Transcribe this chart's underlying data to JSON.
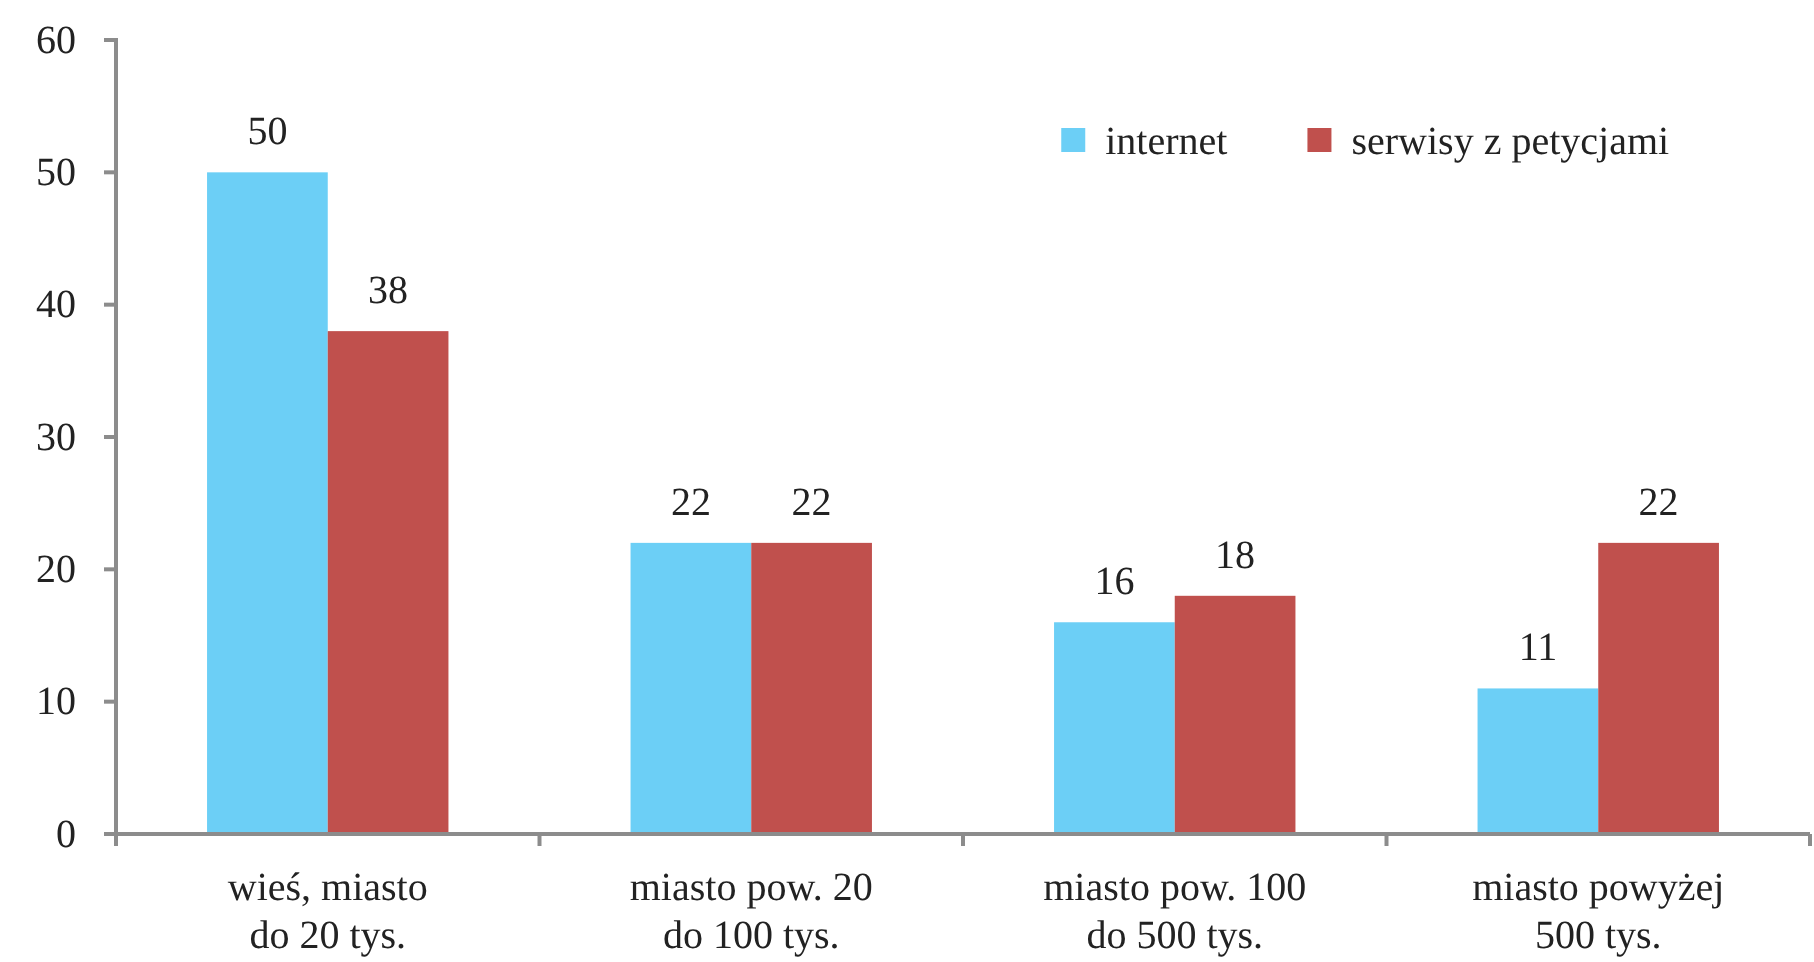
{
  "chart_data": {
    "type": "bar",
    "categories": [
      "wieś, miasto\ndo 20 tys.",
      "miasto pow. 20\ndo 100 tys.",
      "miasto pow. 100\ndo 500 tys.",
      "miasto powyżej\n500 tys."
    ],
    "series": [
      {
        "name": "internet",
        "color": "#6ccff6",
        "values": [
          50,
          22,
          16,
          11
        ]
      },
      {
        "name": "serwisy z petycjami",
        "color": "#c0504d",
        "values": [
          38,
          22,
          18,
          22
        ]
      }
    ],
    "ylim": [
      0,
      60
    ],
    "yticks": [
      0,
      10,
      20,
      30,
      40,
      50,
      60
    ],
    "data_labels": true,
    "legend": "top right",
    "grid": false
  }
}
